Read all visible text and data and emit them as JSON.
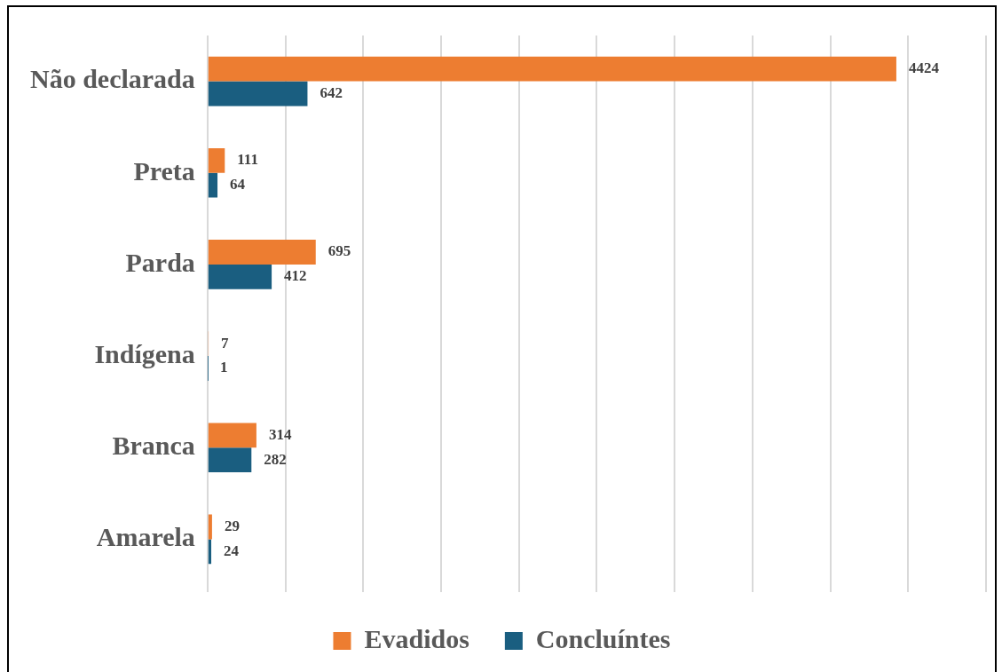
{
  "chart_data": {
    "type": "bar",
    "orientation": "horizontal",
    "categories": [
      "Não declarada",
      "Preta",
      "Parda",
      "Indígena",
      "Branca",
      "Amarela"
    ],
    "series": [
      {
        "name": "Evadidos",
        "color": "#ed7d31",
        "values": [
          4424,
          111,
          695,
          7,
          314,
          29
        ]
      },
      {
        "name": "Concluíntes",
        "color": "#1a5e80",
        "values": [
          642,
          64,
          412,
          1,
          282,
          24
        ]
      }
    ],
    "xlim": [
      0,
      5000
    ],
    "xticks": [
      {
        "value": 0,
        "label": null
      },
      {
        "value": 500,
        "label": null
      },
      {
        "value": 1000,
        "label": null
      },
      {
        "value": 1500,
        "label": null
      },
      {
        "value": 2000,
        "label": null
      },
      {
        "value": 2500,
        "label": null
      },
      {
        "value": 3000,
        "label": null
      },
      {
        "value": 3500,
        "label": null
      },
      {
        "value": 4000,
        "label": null
      },
      {
        "value": 4500,
        "label": null
      },
      {
        "value": 5000,
        "label": null
      }
    ],
    "tick_labels": "y",
    "grid": "x",
    "data_labels": true,
    "legend": "bottom"
  }
}
